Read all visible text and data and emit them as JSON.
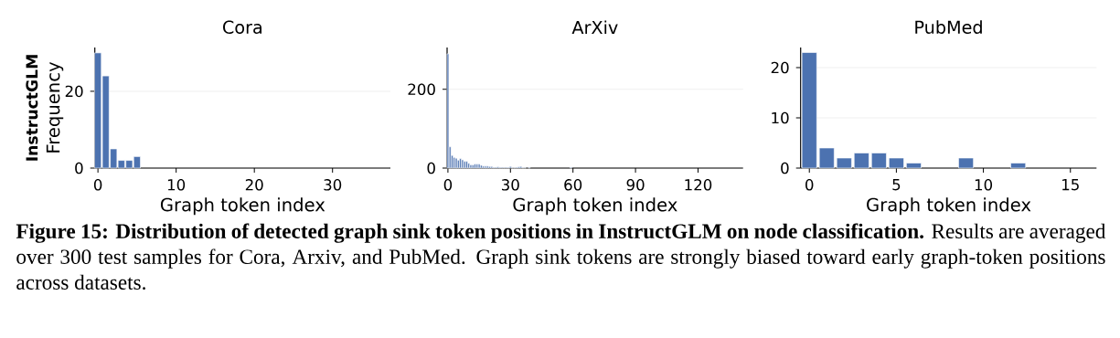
{
  "chart_data": [
    {
      "type": "bar",
      "title": "Cora",
      "xlabel": "Graph token index",
      "ylabel": "Frequency",
      "annotations": [
        "InstructGLM",
        "**Figure 15: Distribution of detected graph sink token positions in InstructGLM on node classification.** Results are averaged over 300 test samples for Cora, Arxiv, and PubMed. Graph sink tokens are strongly biased toward early graph-token positions across datasets."
      ],
      "x": [
        0,
        1,
        2,
        3,
        4,
        5
      ],
      "values": [
        30,
        24,
        5,
        2,
        2,
        3
      ],
      "color": "#4c72b0",
      "xlim": [
        -0.4,
        37.4
      ],
      "ylim": [
        0,
        31.4
      ],
      "xticks": [
        0,
        10,
        20,
        30
      ],
      "yticks": [
        0,
        20
      ],
      "grid": "y"
    },
    {
      "type": "bar",
      "title": "ArXiv",
      "xlabel": "Graph token index",
      "x": [
        0,
        1,
        2,
        3,
        4,
        5,
        6,
        7,
        8,
        9,
        10,
        11,
        12,
        13,
        14,
        15,
        16,
        17,
        18,
        19,
        20,
        21,
        22,
        23,
        24,
        25,
        26,
        27,
        28,
        29,
        30,
        31,
        32,
        33,
        34,
        35,
        36,
        37,
        39,
        59
      ],
      "values": [
        290,
        54,
        32,
        27,
        25,
        20,
        24,
        21,
        17,
        17,
        12,
        8,
        8,
        10,
        10,
        10,
        7,
        5,
        5,
        5,
        4,
        4,
        2,
        2,
        3,
        2,
        2,
        1,
        2,
        2,
        4,
        1,
        1,
        2,
        3,
        4,
        1,
        1,
        2,
        2
      ],
      "color": "#4c72b0",
      "xlim": [
        -0.4,
        141.6
      ],
      "ylim": [
        0,
        306
      ],
      "xticks": [
        0,
        30,
        60,
        90,
        120
      ],
      "yticks": [
        0,
        200
      ],
      "grid": "y"
    },
    {
      "type": "bar",
      "title": "PubMed",
      "xlabel": "Graph token index",
      "x": [
        0,
        1,
        2,
        3,
        4,
        5,
        6,
        9,
        12
      ],
      "values": [
        23,
        4,
        2,
        3,
        3,
        2,
        1,
        2,
        1
      ],
      "color": "#4c72b0",
      "xlim": [
        -0.5,
        16.5
      ],
      "ylim": [
        0,
        24
      ],
      "xticks": [
        0,
        5,
        10,
        15
      ],
      "yticks": [
        0,
        10,
        20
      ],
      "grid": "y"
    }
  ]
}
